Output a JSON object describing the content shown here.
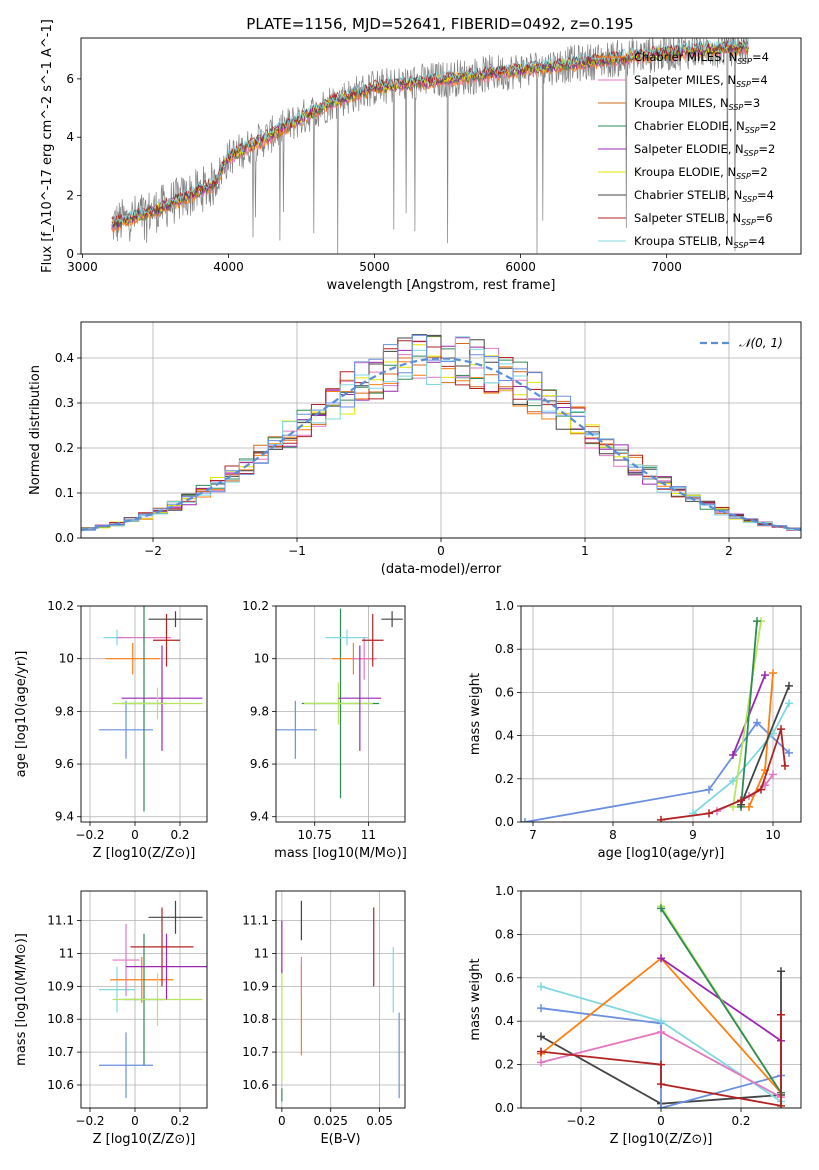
{
  "title": "PLATE=1156, MJD=52641, FIBERID=0492, z=0.195",
  "colors": {
    "chabrier_miles": "#ff7f0e",
    "salpeter_miles": "#e377c2",
    "kroupa_miles": "#d2691e",
    "chabrier_elodie": "#2e8b57",
    "salpeter_elodie": "#9c27b0",
    "kroupa_elodie": "#e6e600",
    "chabrier_stelib": "#444444",
    "salpeter_stelib": "#b22222",
    "kroupa_stelib": "#80d8e0",
    "data_spectrum": "#808080",
    "normal_curve": "#5a8fd6",
    "blue_extra": "#6a8fe0",
    "lime_extra": "#b8e65a"
  },
  "legend": {
    "items": [
      {
        "key": "chabrier_miles",
        "label": "Chabrier MILES, N",
        "sub": "SSP",
        "tail": "=4"
      },
      {
        "key": "salpeter_miles",
        "label": "Salpeter MILES, N",
        "sub": "SSP",
        "tail": "=4"
      },
      {
        "key": "kroupa_miles",
        "label": "Kroupa MILES, N",
        "sub": "SSP",
        "tail": "=3"
      },
      {
        "key": "chabrier_elodie",
        "label": "Chabrier ELODIE, N",
        "sub": "SSP",
        "tail": "=2"
      },
      {
        "key": "salpeter_elodie",
        "label": "Salpeter ELODIE, N",
        "sub": "SSP",
        "tail": "=2"
      },
      {
        "key": "kroupa_elodie",
        "label": "Kroupa ELODIE, N",
        "sub": "SSP",
        "tail": "=2"
      },
      {
        "key": "chabrier_stelib",
        "label": "Chabrier STELIB, N",
        "sub": "SSP",
        "tail": "=4"
      },
      {
        "key": "salpeter_stelib",
        "label": "Salpeter STELIB, N",
        "sub": "SSP",
        "tail": "=6"
      },
      {
        "key": "kroupa_stelib",
        "label": "Kroupa STELIB, N",
        "sub": "SSP",
        "tail": "=4"
      }
    ],
    "normal_label": "𝒩(0, 1)"
  },
  "chart_data": [
    {
      "type": "line",
      "xlabel": "wavelength [Angstrom, rest frame]",
      "ylabel": "Flux [f_λ10^-17 erg cm^-2 s^-1 A^-1]",
      "xlim": [
        2990,
        7920
      ],
      "ylim": [
        0,
        7.4
      ],
      "xticks": [
        3000,
        4000,
        5000,
        6000,
        7000
      ],
      "yticks": [
        0,
        2,
        4,
        6
      ],
      "continuum": {
        "x": [
          3200,
          3500,
          3900,
          4000,
          4300,
          4700,
          5000,
          5500,
          6000,
          6500,
          7000,
          7500
        ],
        "y": [
          1.0,
          1.5,
          2.4,
          3.3,
          4.1,
          5.2,
          5.7,
          6.0,
          6.3,
          6.6,
          6.9,
          7.1
        ]
      }
    },
    {
      "type": "histogram",
      "xlabel": "(data-model)/error",
      "ylabel": "Normed distribution",
      "xlim": [
        -2.5,
        2.5
      ],
      "ylim": [
        0,
        0.48
      ],
      "xticks": [
        -2,
        -1,
        0,
        1,
        2
      ],
      "yticks": [
        0.0,
        0.1,
        0.2,
        0.3,
        0.4
      ],
      "bin_width": 0.1,
      "normal": {
        "mean": 0,
        "sigma": 1,
        "style": "dashed"
      }
    },
    {
      "type": "scatter",
      "xlabel": "Z [log10(Z/Z⊙)]",
      "ylabel": "age [log10(age/yr)]",
      "xlim": [
        -0.24,
        0.32
      ],
      "ylim": [
        9.38,
        10.2
      ],
      "xticks": [
        -0.2,
        0.0,
        0.2
      ],
      "yticks": [
        9.4,
        9.6,
        9.8,
        10.0,
        10.2
      ],
      "points": [
        {
          "s": "blue_extra",
          "x": -0.04,
          "xe": 0.12,
          "y": 9.73,
          "ye": 0.11
        },
        {
          "s": "kroupa_stelib",
          "x": -0.08,
          "xe": 0.06,
          "y": 10.08,
          "ye": 0.03
        },
        {
          "s": "chabrier_miles",
          "x": -0.01,
          "xe": 0.12,
          "y": 10.0,
          "ye": 0.06
        },
        {
          "s": "salpeter_miles",
          "x": 0.04,
          "xe": 0.12,
          "y": 10.08,
          "ye": 0.02
        },
        {
          "s": "chabrier_elodie",
          "x": 0.04,
          "xe": 0.1,
          "y": 9.83,
          "ye": 0.41
        },
        {
          "s": "salpeter_elodie",
          "x": 0.12,
          "xe": 0.18,
          "y": 9.85,
          "ye": 0.2
        },
        {
          "s": "lime_extra",
          "x": 0.1,
          "xe": 0.2,
          "y": 9.83,
          "ye": 0.06
        },
        {
          "s": "salpeter_stelib",
          "x": 0.14,
          "xe": 0.06,
          "y": 10.07,
          "ye": 0.1
        },
        {
          "s": "chabrier_stelib",
          "x": 0.18,
          "xe": 0.12,
          "y": 10.15,
          "ye": 0.03
        }
      ]
    },
    {
      "type": "scatter",
      "xlabel": "mass [log10(M/M⊙)]",
      "ylabel": "",
      "xlim": [
        10.57,
        11.17
      ],
      "ylim": [
        9.38,
        10.2
      ],
      "xticks": [
        10.75,
        11.0
      ],
      "yticks": [
        9.4,
        9.6,
        9.8,
        10.0,
        10.2
      ],
      "points": [
        {
          "s": "blue_extra",
          "x": 10.66,
          "xe": 0.1,
          "y": 9.73,
          "ye": 0.11
        },
        {
          "s": "chabrier_elodie",
          "x": 10.87,
          "xe": 0.18,
          "y": 9.83,
          "ye": 0.36
        },
        {
          "s": "lime_extra",
          "x": 10.86,
          "xe": 0.16,
          "y": 9.83,
          "ye": 0.08
        },
        {
          "s": "kroupa_stelib",
          "x": 10.9,
          "xe": 0.1,
          "y": 10.08,
          "ye": 0.03
        },
        {
          "s": "chabrier_miles",
          "x": 10.93,
          "xe": 0.1,
          "y": 10.0,
          "ye": 0.06
        },
        {
          "s": "salpeter_miles",
          "x": 10.98,
          "xe": 0.06,
          "y": 10.0,
          "ye": 0.08
        },
        {
          "s": "salpeter_elodie",
          "x": 10.96,
          "xe": 0.1,
          "y": 9.85,
          "ye": 0.2
        },
        {
          "s": "salpeter_stelib",
          "x": 11.02,
          "xe": 0.05,
          "y": 10.07,
          "ye": 0.1
        },
        {
          "s": "chabrier_stelib",
          "x": 11.11,
          "xe": 0.05,
          "y": 10.15,
          "ye": 0.03
        }
      ]
    },
    {
      "type": "line",
      "xlabel": "age [log10(age/yr)]",
      "ylabel": "mass weight",
      "xlim": [
        6.85,
        10.35
      ],
      "ylim": [
        0,
        1.0
      ],
      "xticks": [
        7,
        8,
        9,
        10
      ],
      "yticks": [
        0.0,
        0.2,
        0.4,
        0.6,
        0.8,
        1.0
      ],
      "series": [
        {
          "s": "blue_extra",
          "x": [
            6.9,
            9.2,
            9.8,
            10.2
          ],
          "y": [
            0.0,
            0.15,
            0.46,
            0.32
          ]
        },
        {
          "s": "kroupa_stelib",
          "x": [
            9.0,
            9.5,
            10.0,
            10.2
          ],
          "y": [
            0.04,
            0.19,
            0.41,
            0.55
          ]
        },
        {
          "s": "salpeter_miles",
          "x": [
            9.3,
            9.7,
            9.9,
            10.0
          ],
          "y": [
            0.05,
            0.12,
            0.17,
            0.22
          ]
        },
        {
          "s": "chabrier_miles",
          "x": [
            9.7,
            9.9,
            10.0
          ],
          "y": [
            0.07,
            0.24,
            0.69
          ]
        },
        {
          "s": "salpeter_elodie",
          "x": [
            9.5,
            9.9
          ],
          "y": [
            0.31,
            0.68
          ]
        },
        {
          "s": "lime_extra",
          "x": [
            9.5,
            9.85
          ],
          "y": [
            0.07,
            0.93
          ]
        },
        {
          "s": "chabrier_elodie",
          "x": [
            9.6,
            9.8
          ],
          "y": [
            0.07,
            0.93
          ]
        },
        {
          "s": "chabrier_stelib",
          "x": [
            9.6,
            10.2
          ],
          "y": [
            0.08,
            0.63
          ]
        },
        {
          "s": "salpeter_stelib",
          "x": [
            8.6,
            9.2,
            9.6,
            9.85,
            10.1,
            10.15
          ],
          "y": [
            0.01,
            0.04,
            0.1,
            0.15,
            0.43,
            0.26
          ]
        }
      ]
    },
    {
      "type": "scatter",
      "xlabel": "Z [log10(Z/Z⊙)]",
      "ylabel": "mass [log10(M/M⊙)]",
      "xlim": [
        -0.24,
        0.32
      ],
      "ylim": [
        10.53,
        11.19
      ],
      "xticks": [
        -0.2,
        0.0,
        0.2
      ],
      "yticks": [
        10.6,
        10.7,
        10.8,
        10.9,
        11.0,
        11.1
      ],
      "points": [
        {
          "s": "blue_extra",
          "x": -0.04,
          "xe": 0.12,
          "y": 10.66,
          "ye": 0.1
        },
        {
          "s": "kroupa_stelib",
          "x": -0.08,
          "xe": 0.08,
          "y": 10.89,
          "ye": 0.07
        },
        {
          "s": "chabrier_miles",
          "x": 0.03,
          "xe": 0.14,
          "y": 10.92,
          "ye": 0.07
        },
        {
          "s": "salpeter_miles",
          "x": -0.04,
          "xe": 0.06,
          "y": 10.98,
          "ye": 0.11
        },
        {
          "s": "chabrier_elodie",
          "x": 0.04,
          "xe": 0.09,
          "y": 10.86,
          "ye": 0.2
        },
        {
          "s": "lime_extra",
          "x": 0.1,
          "xe": 0.2,
          "y": 10.86,
          "ye": 0.08
        },
        {
          "s": "salpeter_elodie",
          "x": 0.14,
          "xe": 0.18,
          "y": 10.96,
          "ye": 0.1
        },
        {
          "s": "salpeter_stelib",
          "x": 0.12,
          "xe": 0.14,
          "y": 11.02,
          "ye": 0.12
        },
        {
          "s": "chabrier_stelib",
          "x": 0.18,
          "xe": 0.12,
          "y": 11.11,
          "ye": 0.05
        }
      ]
    },
    {
      "type": "scatter",
      "xlabel": "E(B-V)",
      "ylabel": "",
      "xlim": [
        -0.003,
        0.063
      ],
      "ylim": [
        10.53,
        11.19
      ],
      "xticks": [
        0.0,
        0.025,
        0.05
      ],
      "yticks": [
        10.6,
        10.7,
        10.8,
        10.9,
        11.0,
        11.1
      ],
      "points": [
        {
          "s": "chabrier_elodie",
          "x": 0.0,
          "y": 10.57,
          "ye": 0.02
        },
        {
          "s": "lime_extra",
          "x": 0.0,
          "y": 10.78,
          "ye": 0.17
        },
        {
          "s": "salpeter_elodie",
          "x": 0.0,
          "y": 11.02,
          "ye": 0.08
        },
        {
          "s": "chabrier_miles",
          "x": 0.01,
          "y": 10.83,
          "ye": 0.14
        },
        {
          "s": "salpeter_miles",
          "x": 0.01,
          "y": 10.93,
          "ye": 0.06
        },
        {
          "s": "chabrier_stelib",
          "x": 0.01,
          "y": 11.1,
          "ye": 0.06
        },
        {
          "s": "salpeter_stelib",
          "x": 0.047,
          "y": 11.02,
          "ye": 0.12
        },
        {
          "s": "kroupa_stelib",
          "x": 0.057,
          "y": 10.92,
          "ye": 0.1
        },
        {
          "s": "blue_extra",
          "x": 0.06,
          "y": 10.69,
          "ye": 0.13
        }
      ]
    },
    {
      "type": "line",
      "xlabel": "Z [log10(Z/Z⊙)]",
      "ylabel": "mass weight",
      "xlim": [
        -0.35,
        0.35
      ],
      "ylim": [
        0,
        1.0
      ],
      "xticks": [
        -0.2,
        0.0,
        0.2
      ],
      "yticks": [
        0.0,
        0.2,
        0.4,
        0.6,
        0.8,
        1.0
      ],
      "series": [
        {
          "s": "chabrier_stelib",
          "x": [
            -0.3,
            0.0,
            0.3,
            0.3
          ],
          "y": [
            0.33,
            0.02,
            0.06,
            0.63
          ]
        },
        {
          "s": "blue_extra",
          "x": [
            -0.3,
            0.0,
            0.0,
            0.3
          ],
          "y": [
            0.46,
            0.39,
            0.0,
            0.15
          ]
        },
        {
          "s": "kroupa_stelib",
          "x": [
            -0.3,
            0.0,
            0.3,
            0.3
          ],
          "y": [
            0.56,
            0.4,
            0.03,
            0.07
          ]
        },
        {
          "s": "chabrier_miles",
          "x": [
            -0.3,
            0.0,
            0.3
          ],
          "y": [
            0.25,
            0.69,
            0.07
          ]
        },
        {
          "s": "salpeter_miles",
          "x": [
            -0.3,
            0.0,
            0.3
          ],
          "y": [
            0.21,
            0.35,
            0.05
          ]
        },
        {
          "s": "salpeter_elodie",
          "x": [
            0.0,
            0.3
          ],
          "y": [
            0.69,
            0.31
          ]
        },
        {
          "s": "lime_extra",
          "x": [
            0.0,
            0.3
          ],
          "y": [
            0.93,
            0.07
          ]
        },
        {
          "s": "chabrier_elodie",
          "x": [
            0.0,
            0.3
          ],
          "y": [
            0.92,
            0.07
          ]
        },
        {
          "s": "salpeter_stelib",
          "x": [
            -0.3,
            0.0,
            0.0,
            0.3,
            0.3
          ],
          "y": [
            0.26,
            0.2,
            0.11,
            0.01,
            0.43
          ]
        }
      ]
    }
  ]
}
